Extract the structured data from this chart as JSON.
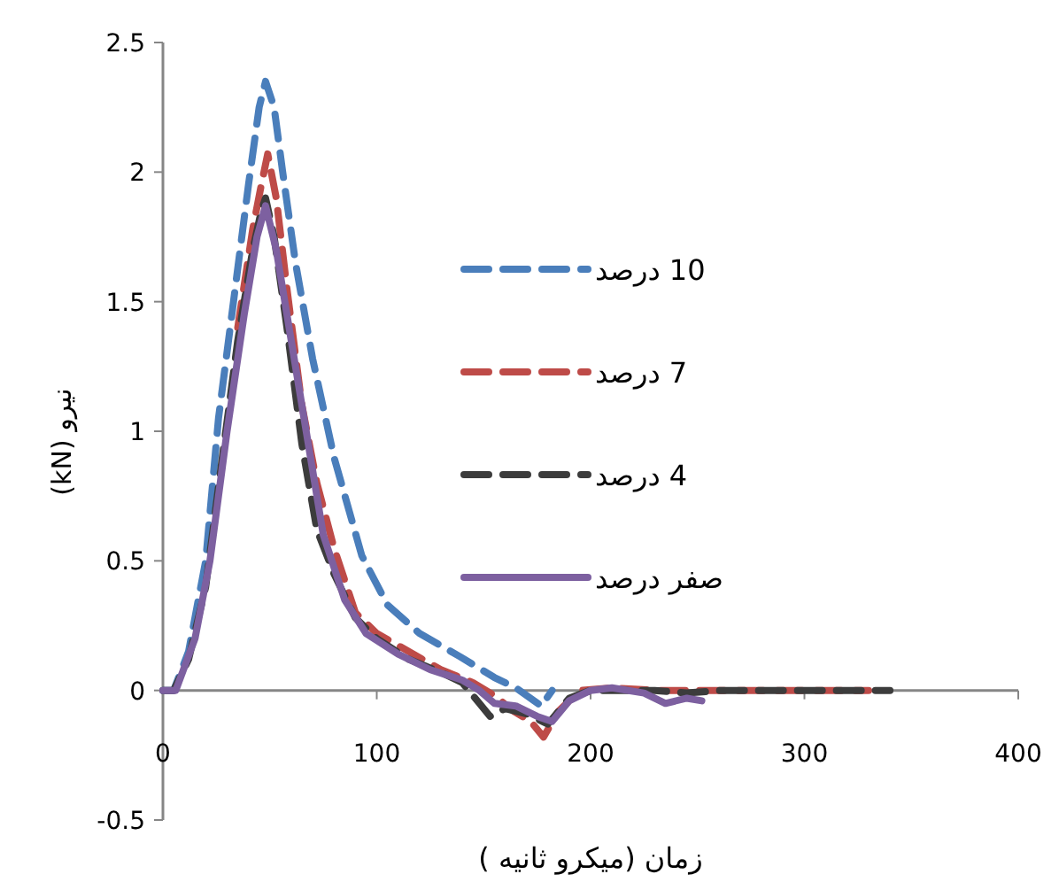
{
  "chart_data": {
    "type": "line",
    "xlabel": "زمان (میکرو ثانیه )",
    "ylabel": "نیرو (kN)",
    "xlim": [
      0,
      400
    ],
    "xticks": [
      0,
      100,
      200,
      300,
      400
    ],
    "ylim": [
      -0.5,
      2.5
    ],
    "yticks": [
      -0.5,
      0,
      0.5,
      1,
      1.5,
      2,
      2.5
    ],
    "grid": false,
    "legend": "right",
    "marker": "none",
    "series": [
      {
        "name": "10 درصد",
        "color": "#4a7ebb",
        "line_style": "dashed",
        "x": [
          0,
          5,
          12,
          20,
          26,
          33,
          40,
          45,
          48,
          52,
          56,
          62,
          70,
          80,
          93,
          105,
          120,
          139,
          155,
          165,
          177,
          182
        ],
        "values": [
          0,
          0,
          0.15,
          0.5,
          1.05,
          1.5,
          1.95,
          2.25,
          2.35,
          2.25,
          2,
          1.65,
          1.28,
          0.9,
          0.52,
          0.33,
          0.22,
          0.13,
          0.05,
          0.01,
          -0.06,
          0
        ]
      },
      {
        "name": "7 درصد",
        "color": "#be4b48",
        "line_style": "dashed",
        "x": [
          35,
          42,
          46,
          49,
          53,
          58,
          65,
          72,
          80,
          90,
          100,
          115,
          130,
          145,
          155,
          164,
          172,
          178,
          185,
          195,
          210,
          230,
          250,
          270,
          300,
          330
        ],
        "values": [
          1.4,
          1.78,
          1.95,
          2.07,
          1.9,
          1.55,
          1.1,
          0.8,
          0.55,
          0.3,
          0.22,
          0.15,
          0.08,
          0.03,
          -0.02,
          -0.08,
          -0.12,
          -0.18,
          -0.08,
          0,
          0.01,
          0,
          0,
          0,
          0,
          0
        ]
      },
      {
        "name": "4 درصد",
        "color": "#3c3c3c",
        "line_style": "dashed",
        "x": [
          0,
          5,
          12,
          20,
          27,
          35,
          42,
          46,
          48,
          52,
          58,
          65,
          72,
          80,
          90,
          100,
          115,
          130,
          140,
          148,
          153,
          160,
          170,
          180,
          190,
          200,
          215,
          230,
          245,
          260,
          290,
          320,
          340
        ],
        "values": [
          0,
          0,
          0.12,
          0.4,
          0.85,
          1.35,
          1.7,
          1.85,
          1.9,
          1.75,
          1.4,
          0.95,
          0.62,
          0.45,
          0.28,
          0.2,
          0.12,
          0.07,
          0.03,
          -0.05,
          -0.1,
          -0.07,
          -0.09,
          -0.13,
          -0.03,
          0,
          0,
          0,
          -0.01,
          0,
          0,
          0,
          0
        ]
      },
      {
        "name": "صفر درصد",
        "color": "#7d60a0",
        "line_style": "solid",
        "x": [
          0,
          6,
          15,
          22,
          30,
          38,
          44,
          48,
          53,
          60,
          67,
          75,
          85,
          95,
          110,
          125,
          140,
          148,
          155,
          165,
          175,
          182,
          190,
          200,
          210,
          225,
          235,
          245,
          252
        ],
        "values": [
          0,
          0,
          0.2,
          0.5,
          1,
          1.45,
          1.75,
          1.87,
          1.7,
          1.35,
          1,
          0.6,
          0.35,
          0.22,
          0.14,
          0.08,
          0.04,
          0,
          -0.05,
          -0.06,
          -0.1,
          -0.12,
          -0.04,
          0,
          0.01,
          -0.01,
          -0.05,
          -0.03,
          -0.04
        ]
      }
    ]
  }
}
